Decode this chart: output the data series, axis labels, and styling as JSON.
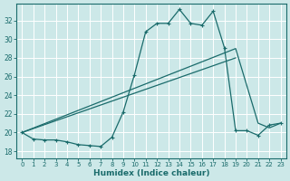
{
  "title": "",
  "xlabel": "Humidex (Indice chaleur)",
  "bg_color": "#cce8e8",
  "grid_color": "#b0d4d4",
  "line_color": "#1a6b6b",
  "x_ticks": [
    0,
    1,
    2,
    3,
    4,
    5,
    6,
    7,
    8,
    9,
    10,
    11,
    12,
    13,
    14,
    15,
    16,
    17,
    18,
    19,
    20,
    21,
    22,
    23
  ],
  "y_ticks": [
    18,
    20,
    22,
    24,
    26,
    28,
    30,
    32
  ],
  "ylim": [
    17.2,
    33.8
  ],
  "xlim": [
    -0.5,
    23.5
  ],
  "curve1_x": [
    0,
    1,
    2,
    3,
    4,
    5,
    6,
    7,
    8,
    9,
    10,
    11,
    12,
    13,
    14,
    15,
    16,
    17,
    18,
    19,
    20,
    21,
    22,
    23
  ],
  "curve1_y": [
    20.0,
    19.3,
    19.2,
    19.2,
    19.0,
    18.7,
    18.6,
    18.5,
    19.5,
    22.2,
    26.2,
    30.8,
    31.7,
    31.7,
    33.2,
    31.7,
    31.5,
    33.0,
    29.1,
    20.2,
    20.2,
    19.7,
    20.8,
    21.0
  ],
  "line1_x": [
    0,
    19,
    21,
    22,
    23
  ],
  "line1_y": [
    20.0,
    29.0,
    21.0,
    20.5,
    21.0
  ],
  "line2_x": [
    0,
    19
  ],
  "line2_y": [
    20.0,
    28.0
  ]
}
